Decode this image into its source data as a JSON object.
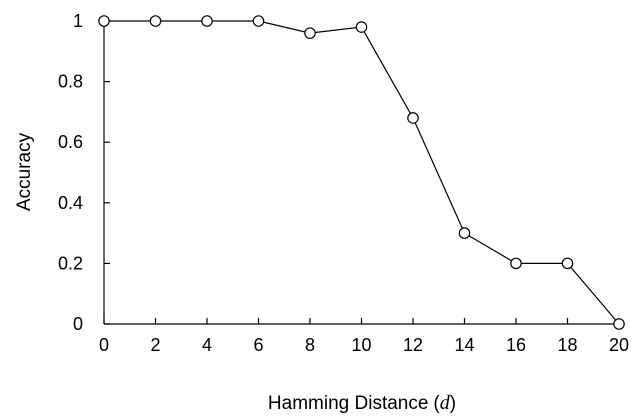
{
  "chart_data": {
    "type": "line",
    "xlabel": "Hamming Distance",
    "xlabel_variable": "d",
    "ylabel": "Accuracy",
    "xlim": [
      0,
      20
    ],
    "ylim": [
      0,
      1
    ],
    "x_ticks": [
      0,
      2,
      4,
      6,
      8,
      10,
      12,
      14,
      16,
      18,
      20
    ],
    "y_ticks": [
      0,
      0.2,
      0.4,
      0.6,
      0.8,
      1
    ],
    "y_tick_labels": [
      "0",
      "0.2",
      "0.4",
      "0.6",
      "0.8",
      "1"
    ],
    "grid": false,
    "series": [
      {
        "x": [
          0,
          2,
          4,
          6,
          8,
          10,
          12,
          14,
          16,
          18,
          20
        ],
        "values": [
          1.0,
          1.0,
          1.0,
          1.0,
          0.96,
          0.98,
          0.68,
          0.3,
          0.2,
          0.2,
          0.0
        ],
        "marker": "open-circle",
        "color": "#000000"
      }
    ]
  }
}
